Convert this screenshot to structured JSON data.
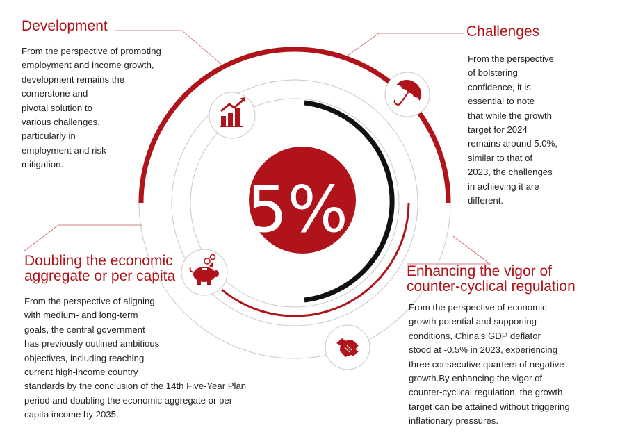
{
  "center": {
    "value": "5%"
  },
  "colors": {
    "accent": "#b0141a",
    "ring": "#c8c8c8",
    "arc_dark": "#111111",
    "text": "#231f20"
  },
  "sections": [
    {
      "id": "development",
      "title": "Development",
      "icon": "bar-chart-growth-icon",
      "text": "From the perspective of promoting\nemployment and income growth,\ndevelopment remains the\ncornerstone and\npivotal solution to\nvarious challenges,\nparticularly in\nemployment and risk\nmitigation."
    },
    {
      "id": "challenges",
      "title": "Challenges",
      "icon": "umbrella-icon",
      "text": "From the perspective\nof bolstering\nconfidence, it is\nessential to note\nthat while the growth\ntarget for 2024\nremains around 5.0%,\nsimilar to that of\n2023, the challenges\nin achieving it are\ndifferent."
    },
    {
      "id": "doubling",
      "title_lines": [
        "Doubling the economic",
        "aggregate or per capita"
      ],
      "icon": "piggy-bank-icon",
      "text": "From the perspective of aligning\nwith medium- and long-term\ngoals, the central government\nhas previously outlined ambitious\nobjectives, including reaching\ncurrent high-income country\nstandards by the conclusion of the 14th Five-Year Plan\nperiod and doubling the economic aggregate or per\ncapita income by 2035."
    },
    {
      "id": "counter-cyclical",
      "title_lines": [
        "Enhancing the vigor of",
        "counter-cyclical regulation"
      ],
      "icon": "handshake-icon",
      "text": "From the perspective of economic\ngrowth potential and supporting\nconditions, China's GDP deflator\nstood at -0.5% in 2023, experiencing\nthree consecutive quarters of negative\ngrowth.By enhancing the vigor of\ncounter-cyclical regulation, the growth\ntarget can be attained without triggering\ninflationary pressures."
    }
  ]
}
